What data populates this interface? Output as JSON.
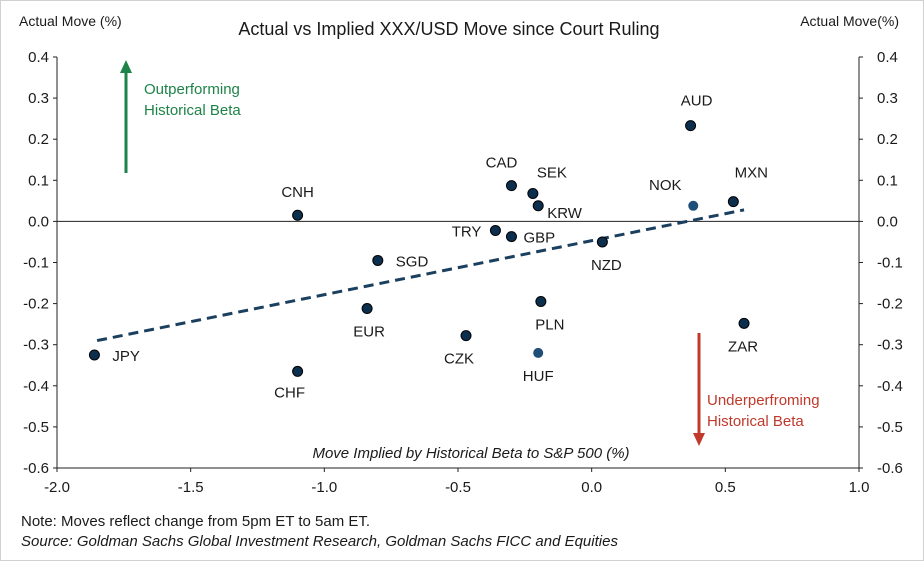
{
  "chart_data": {
    "type": "scatter",
    "title": "Actual vs Implied XXX/USD Move since Court Ruling",
    "ylabel_left": "Actual Move (%)",
    "ylabel_right": "Actual Move(%)",
    "xlabel": "Move Implied by Historical Beta to S&P 500 (%)",
    "xlim": [
      -2.0,
      1.0
    ],
    "ylim": [
      -0.6,
      0.4
    ],
    "x_ticks": [
      "-2.0",
      "-1.5",
      "-1.0",
      "-0.5",
      "0.0",
      "0.5",
      "1.0"
    ],
    "y_ticks": [
      "0.4",
      "0.3",
      "0.2",
      "0.1",
      "0.0",
      "-0.1",
      "-0.2",
      "-0.3",
      "-0.4",
      "-0.5",
      "-0.6"
    ],
    "grid": false,
    "points": [
      {
        "label": "JPY",
        "x": -1.86,
        "y": -0.325
      },
      {
        "label": "CNH",
        "x": -1.1,
        "y": 0.015
      },
      {
        "label": "CHF",
        "x": -1.1,
        "y": -0.365
      },
      {
        "label": "SGD",
        "x": -0.8,
        "y": -0.095
      },
      {
        "label": "EUR",
        "x": -0.84,
        "y": -0.212
      },
      {
        "label": "CZK",
        "x": -0.47,
        "y": -0.278
      },
      {
        "label": "TRY",
        "x": -0.36,
        "y": -0.022
      },
      {
        "label": "GBP",
        "x": -0.3,
        "y": -0.037
      },
      {
        "label": "CAD",
        "x": -0.3,
        "y": 0.087
      },
      {
        "label": "SEK",
        "x": -0.22,
        "y": 0.068
      },
      {
        "label": "KRW",
        "x": -0.2,
        "y": 0.038
      },
      {
        "label": "PLN",
        "x": -0.19,
        "y": -0.195
      },
      {
        "label": "HUF",
        "x": -0.2,
        "y": -0.32
      },
      {
        "label": "NZD",
        "x": 0.04,
        "y": -0.05
      },
      {
        "label": "AUD",
        "x": 0.37,
        "y": 0.233
      },
      {
        "label": "NOK",
        "x": 0.38,
        "y": 0.038
      },
      {
        "label": "MXN",
        "x": 0.53,
        "y": 0.048
      },
      {
        "label": "ZAR",
        "x": 0.57,
        "y": -0.248
      }
    ],
    "trendline": {
      "x": [
        -1.85,
        0.57
      ],
      "y": [
        -0.29,
        0.028
      ]
    },
    "annotations": {
      "up_line1": "Outperforming",
      "up_line2": "Historical Beta",
      "down_line1": "Underperfroming",
      "down_line2": "Historical Beta"
    },
    "colors": {
      "point": "#0d2f4e",
      "trend": "#1a3f5f",
      "up": "#1d8348",
      "down": "#c0392b"
    }
  },
  "notes": {
    "note": "Note: Moves reflect change from 5pm ET to 5am ET.",
    "source": "Source: Goldman Sachs Global Investment Research, Goldman Sachs FICC and Equities"
  }
}
